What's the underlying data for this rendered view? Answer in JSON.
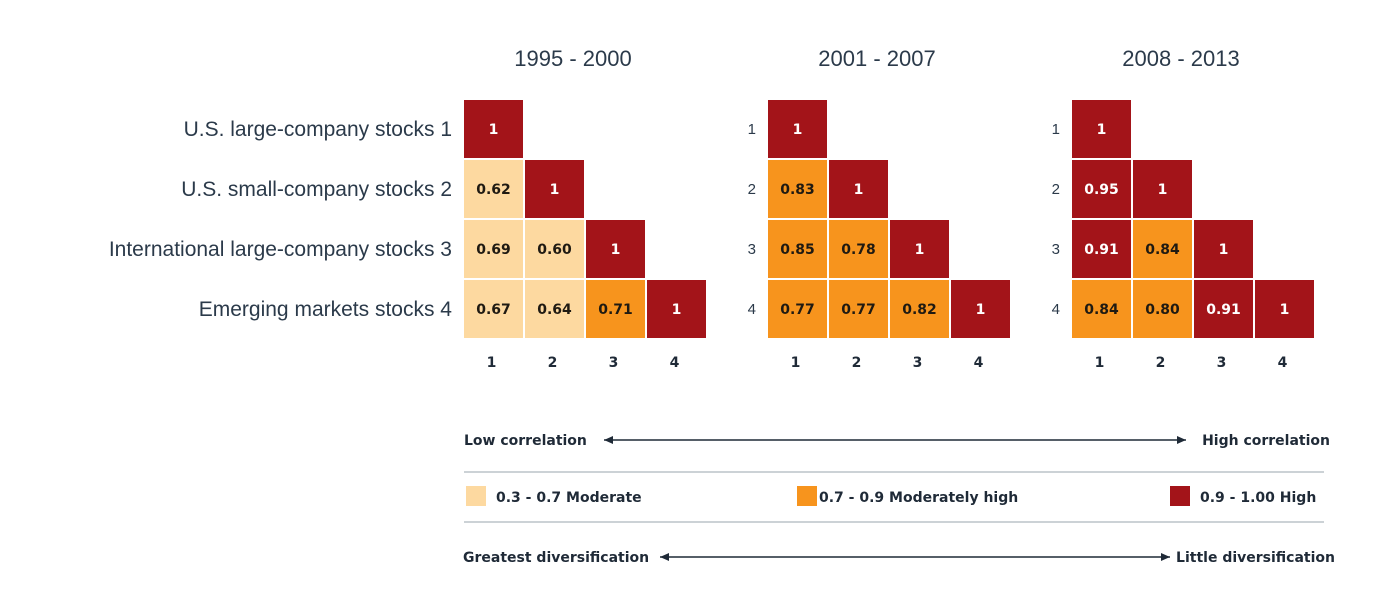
{
  "chart_data": {
    "type": "heatmap",
    "row_labels": [
      "U.S. large-company stocks 1",
      "U.S. small-company stocks 2",
      "International large-company stocks 3",
      "Emerging markets stocks 4"
    ],
    "column_ticks": [
      "1",
      "2",
      "3",
      "4"
    ],
    "row_ticks": [
      "1",
      "2",
      "3",
      "4"
    ],
    "panels": [
      {
        "title": "1995 - 2000",
        "rows": [
          [
            "1"
          ],
          [
            "0.62",
            "1"
          ],
          [
            "0.69",
            "0.60",
            "1"
          ],
          [
            "0.67",
            "0.64",
            "0.71",
            "1"
          ]
        ]
      },
      {
        "title": "2001 - 2007",
        "rows": [
          [
            "1"
          ],
          [
            "0.83",
            "1"
          ],
          [
            "0.85",
            "0.78",
            "1"
          ],
          [
            "0.77",
            "0.77",
            "0.82",
            "1"
          ]
        ]
      },
      {
        "title": "2008 - 2013",
        "rows": [
          [
            "1"
          ],
          [
            "0.95",
            "1"
          ],
          [
            "0.91",
            "0.84",
            "1"
          ],
          [
            "0.84",
            "0.80",
            "0.91",
            "1"
          ]
        ]
      }
    ],
    "correlation_scale": {
      "left_label": "Low correlation",
      "right_label": "High correlation"
    },
    "legend": [
      {
        "label": "0.3 - 0.7 Moderate",
        "min": 0.3,
        "max": 0.7,
        "color": "#fdd9a0"
      },
      {
        "label": "0.7 - 0.9  Moderately high",
        "min": 0.7,
        "max": 0.9,
        "color": "#f7941d"
      },
      {
        "label": "0.9 - 1.00  High",
        "min": 0.9,
        "max": 1.0,
        "color": "#a31419"
      }
    ],
    "diversification_scale": {
      "left_label": "Greatest diversification",
      "right_label": "Little diversification"
    }
  }
}
